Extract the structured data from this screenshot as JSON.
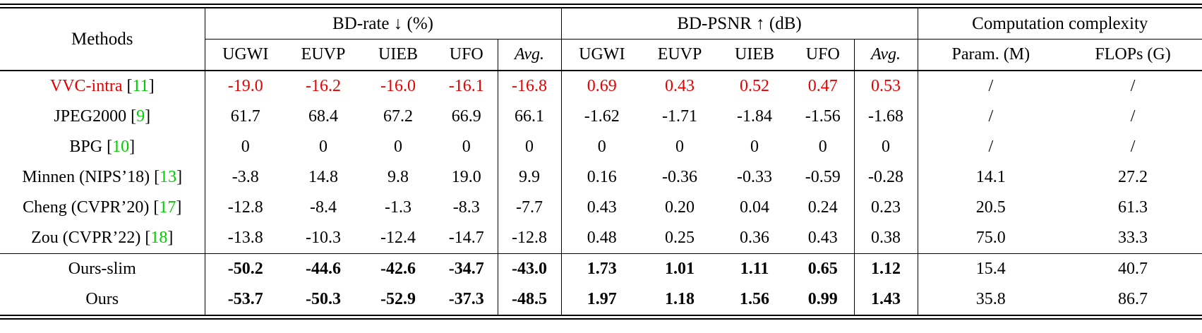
{
  "colors": {
    "highlight": "#e60000",
    "cite": "#00cc00"
  },
  "header": {
    "methods_label": "Methods",
    "groups": [
      {
        "label": "BD-rate ↓ (%)",
        "cols": [
          "UGWI",
          "EUVP",
          "UIEB",
          "UFO",
          "Avg."
        ]
      },
      {
        "label": "BD-PSNR ↑ (dB)",
        "cols": [
          "UGWI",
          "EUVP",
          "UIEB",
          "UFO",
          "Avg."
        ]
      },
      {
        "label": "Computation complexity",
        "cols": [
          "Param. (M)",
          "FLOPs (G)"
        ]
      }
    ]
  },
  "rows": [
    {
      "method": "VVC-intra",
      "cite": "11",
      "highlight": true,
      "bold_metrics": false,
      "section_start": false,
      "values": [
        "-19.0",
        "-16.2",
        "-16.0",
        "-16.1",
        "-16.8",
        "0.69",
        "0.43",
        "0.52",
        "0.47",
        "0.53",
        "/",
        "/"
      ]
    },
    {
      "method": "JPEG2000",
      "cite": "9",
      "highlight": false,
      "bold_metrics": false,
      "section_start": false,
      "values": [
        "61.7",
        "68.4",
        "67.2",
        "66.9",
        "66.1",
        "-1.62",
        "-1.71",
        "-1.84",
        "-1.56",
        "-1.68",
        "/",
        "/"
      ]
    },
    {
      "method": "BPG",
      "cite": "10",
      "highlight": false,
      "bold_metrics": false,
      "section_start": false,
      "values": [
        "0",
        "0",
        "0",
        "0",
        "0",
        "0",
        "0",
        "0",
        "0",
        "0",
        "/",
        "/"
      ]
    },
    {
      "method": "Minnen (NIPS’18)",
      "cite": "13",
      "highlight": false,
      "bold_metrics": false,
      "section_start": false,
      "values": [
        "-3.8",
        "14.8",
        "9.8",
        "19.0",
        "9.9",
        "0.16",
        "-0.36",
        "-0.33",
        "-0.59",
        "-0.28",
        "14.1",
        "27.2"
      ]
    },
    {
      "method": "Cheng (CVPR’20)",
      "cite": "17",
      "highlight": false,
      "bold_metrics": false,
      "section_start": false,
      "values": [
        "-12.8",
        "-8.4",
        "-1.3",
        "-8.3",
        "-7.7",
        "0.43",
        "0.20",
        "0.04",
        "0.24",
        "0.23",
        "20.5",
        "61.3"
      ]
    },
    {
      "method": "Zou (CVPR’22)",
      "cite": "18",
      "highlight": false,
      "bold_metrics": false,
      "section_start": false,
      "values": [
        "-13.8",
        "-10.3",
        "-12.4",
        "-14.7",
        "-12.8",
        "0.48",
        "0.25",
        "0.36",
        "0.43",
        "0.38",
        "75.0",
        "33.3"
      ]
    },
    {
      "method": "Ours-slim",
      "cite": null,
      "highlight": false,
      "bold_metrics": true,
      "section_start": true,
      "values": [
        "-50.2",
        "-44.6",
        "-42.6",
        "-34.7",
        "-43.0",
        "1.73",
        "1.01",
        "1.11",
        "0.65",
        "1.12",
        "15.4",
        "40.7"
      ]
    },
    {
      "method": "Ours",
      "cite": null,
      "highlight": false,
      "bold_metrics": true,
      "section_start": false,
      "values": [
        "-53.7",
        "-50.3",
        "-52.9",
        "-37.3",
        "-48.5",
        "1.97",
        "1.18",
        "1.56",
        "0.99",
        "1.43",
        "35.8",
        "86.7"
      ]
    }
  ]
}
